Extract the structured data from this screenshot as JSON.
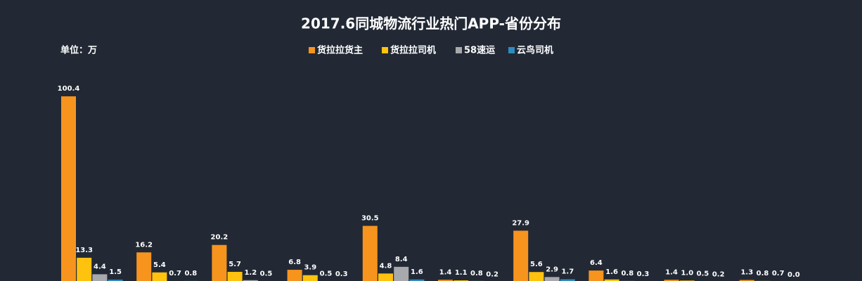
{
  "chart_data": {
    "type": "bar",
    "title": "2017.6同城物流行业热门APP-省份分布",
    "unit_label": "单位：万",
    "categories": [
      null,
      null,
      null,
      null,
      null,
      null,
      null,
      null,
      null,
      null
    ],
    "series": [
      {
        "name": "货拉拉货主",
        "color": "#f7941d",
        "values": [
          100.4,
          16.2,
          20.2,
          6.8,
          30.5,
          1.4,
          27.9,
          6.4,
          1.4,
          1.3
        ],
        "value_labels": [
          "100.4",
          "16.2",
          "20.2",
          "6.8",
          "30.5",
          "1.4",
          "27.9",
          "6.4",
          "1.4",
          "1.3"
        ]
      },
      {
        "name": "货拉拉司机",
        "color": "#ffc20e",
        "values": [
          13.3,
          5.4,
          5.7,
          3.9,
          4.8,
          1.1,
          5.6,
          1.6,
          1.0,
          0.8
        ],
        "value_labels": [
          "13.3",
          "5.4",
          "5.7",
          "3.9",
          "4.8",
          "1.1",
          "5.6",
          "1.6",
          "1.0",
          "0.8"
        ]
      },
      {
        "name": "58速运",
        "color": "#a7a9ac",
        "values": [
          4.4,
          0.7,
          1.2,
          0.5,
          8.4,
          0.8,
          2.9,
          0.8,
          0.5,
          0.7
        ],
        "value_labels": [
          "4.4",
          "0.7",
          "1.2",
          "0.5",
          "8.4",
          "0.8",
          "2.9",
          "0.8",
          "0.5",
          "0.7"
        ]
      },
      {
        "name": "云鸟司机",
        "color": "#2e8bc0",
        "values": [
          1.5,
          0.8,
          0.5,
          0.3,
          1.6,
          0.2,
          1.7,
          0.3,
          0.2,
          0.0
        ],
        "value_labels": [
          "1.5",
          "0.8",
          "0.5",
          "0.3",
          "1.6",
          "0.2",
          "1.7",
          "0.3",
          "0.2",
          "0.0"
        ]
      }
    ],
    "ylim": [
      0,
      105
    ],
    "grid": false,
    "legend": "top"
  }
}
